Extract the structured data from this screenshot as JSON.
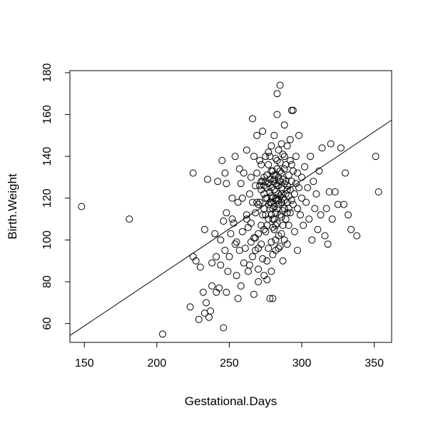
{
  "chart_data": {
    "type": "scatter",
    "title": "",
    "xlabel": "Gestational.Days",
    "ylabel": "Birth.Weight",
    "xlim": [
      140,
      362
    ],
    "ylim": [
      51,
      181
    ],
    "xticks": [
      150,
      200,
      250,
      300,
      350
    ],
    "yticks": [
      60,
      80,
      100,
      120,
      140,
      160,
      180
    ],
    "grid": false,
    "marker": "open-circle",
    "colors": {
      "points": "#000000",
      "line": "#000000",
      "box": "#000000"
    },
    "fit_line": {
      "intercept": -10.75,
      "slope": 0.4643
    },
    "points": [
      [
        148,
        116
      ],
      [
        181,
        110
      ],
      [
        204,
        55
      ],
      [
        223,
        68
      ],
      [
        225,
        92
      ],
      [
        225,
        132
      ],
      [
        227,
        90
      ],
      [
        229,
        62
      ],
      [
        230,
        87
      ],
      [
        232,
        75
      ],
      [
        233,
        105
      ],
      [
        233,
        65
      ],
      [
        234,
        70
      ],
      [
        235,
        129
      ],
      [
        236,
        63
      ],
      [
        237,
        66
      ],
      [
        238,
        89
      ],
      [
        238,
        78
      ],
      [
        240,
        103
      ],
      [
        241,
        75
      ],
      [
        241,
        92
      ],
      [
        242,
        128
      ],
      [
        243,
        77
      ],
      [
        244,
        88
      ],
      [
        244,
        100
      ],
      [
        245,
        138
      ],
      [
        246,
        109
      ],
      [
        246,
        58
      ],
      [
        247,
        132
      ],
      [
        247,
        95
      ],
      [
        248,
        113
      ],
      [
        248,
        75
      ],
      [
        248,
        127
      ],
      [
        249,
        85
      ],
      [
        250,
        92
      ],
      [
        251,
        103
      ],
      [
        252,
        110
      ],
      [
        252,
        120
      ],
      [
        253,
        108
      ],
      [
        254,
        140
      ],
      [
        254,
        98
      ],
      [
        255,
        99
      ],
      [
        255,
        83
      ],
      [
        256,
        72
      ],
      [
        256,
        118
      ],
      [
        257,
        134
      ],
      [
        257,
        95
      ],
      [
        258,
        78
      ],
      [
        258,
        127
      ],
      [
        259,
        120
      ],
      [
        259,
        104
      ],
      [
        260,
        132
      ],
      [
        260,
        89
      ],
      [
        261,
        96
      ],
      [
        262,
        112
      ],
      [
        262,
        143
      ],
      [
        263,
        85
      ],
      [
        263,
        106
      ],
      [
        264,
        88
      ],
      [
        264,
        122
      ],
      [
        265,
        99
      ],
      [
        265,
        130
      ],
      [
        266,
        118
      ],
      [
        266,
        158
      ],
      [
        267,
        101
      ],
      [
        267,
        140
      ],
      [
        267,
        74
      ],
      [
        268,
        95
      ],
      [
        268,
        126
      ],
      [
        268,
        113
      ],
      [
        269,
        150
      ],
      [
        269,
        132
      ],
      [
        270,
        103
      ],
      [
        270,
        86
      ],
      [
        270,
        117
      ],
      [
        271,
        118
      ],
      [
        271,
        138
      ],
      [
        272,
        98
      ],
      [
        272,
        124
      ],
      [
        272,
        107
      ],
      [
        273,
        128
      ],
      [
        273,
        152
      ],
      [
        273,
        91
      ],
      [
        274,
        115
      ],
      [
        274,
        130
      ],
      [
        274,
        83
      ],
      [
        275,
        112
      ],
      [
        275,
        128
      ],
      [
        275,
        140
      ],
      [
        275,
        104
      ],
      [
        276,
        107
      ],
      [
        276,
        131
      ],
      [
        276,
        120
      ],
      [
        276,
        81
      ],
      [
        277,
        110
      ],
      [
        277,
        127
      ],
      [
        277,
        136
      ],
      [
        277,
        96
      ],
      [
        278,
        115
      ],
      [
        278,
        123
      ],
      [
        278,
        140
      ],
      [
        278,
        72
      ],
      [
        279,
        112
      ],
      [
        279,
        118
      ],
      [
        279,
        125
      ],
      [
        279,
        99
      ],
      [
        279,
        145
      ],
      [
        280,
        120
      ],
      [
        280,
        128
      ],
      [
        280,
        110
      ],
      [
        280,
        133
      ],
      [
        280,
        93
      ],
      [
        281,
        116
      ],
      [
        281,
        124
      ],
      [
        281,
        131
      ],
      [
        281,
        105
      ],
      [
        281,
        150
      ],
      [
        282,
        113
      ],
      [
        282,
        120
      ],
      [
        282,
        127
      ],
      [
        282,
        139
      ],
      [
        282,
        100
      ],
      [
        283,
        119
      ],
      [
        283,
        126
      ],
      [
        283,
        134
      ],
      [
        283,
        108
      ],
      [
        283,
        160
      ],
      [
        284,
        117
      ],
      [
        284,
        122
      ],
      [
        284,
        130
      ],
      [
        284,
        143
      ],
      [
        284,
        96
      ],
      [
        285,
        121
      ],
      [
        285,
        128
      ],
      [
        285,
        112
      ],
      [
        285,
        137
      ],
      [
        285,
        174
      ],
      [
        286,
        118
      ],
      [
        286,
        125
      ],
      [
        286,
        132
      ],
      [
        286,
        103
      ],
      [
        287,
        120
      ],
      [
        287,
        129
      ],
      [
        287,
        141
      ],
      [
        287,
        90
      ],
      [
        288,
        115
      ],
      [
        288,
        127
      ],
      [
        288,
        134
      ],
      [
        288,
        155
      ],
      [
        289,
        122
      ],
      [
        289,
        110
      ],
      [
        289,
        136
      ],
      [
        290,
        126
      ],
      [
        290,
        118
      ],
      [
        290,
        145
      ],
      [
        290,
        98
      ],
      [
        291,
        121
      ],
      [
        291,
        131
      ],
      [
        291,
        107
      ],
      [
        292,
        124
      ],
      [
        292,
        138
      ],
      [
        292,
        113
      ],
      [
        293,
        128
      ],
      [
        293,
        119
      ],
      [
        293,
        162
      ],
      [
        294,
        117
      ],
      [
        294,
        133
      ],
      [
        295,
        122
      ],
      [
        295,
        104
      ],
      [
        296,
        127
      ],
      [
        296,
        140
      ],
      [
        297,
        115
      ],
      [
        297,
        95
      ],
      [
        298,
        125
      ],
      [
        298,
        150
      ],
      [
        299,
        112
      ],
      [
        300,
        130
      ],
      [
        300,
        120
      ],
      [
        301,
        107
      ],
      [
        302,
        135
      ],
      [
        303,
        118
      ],
      [
        304,
        125
      ],
      [
        305,
        110
      ],
      [
        306,
        140
      ],
      [
        307,
        100
      ],
      [
        308,
        128
      ],
      [
        309,
        115
      ],
      [
        310,
        122
      ],
      [
        311,
        105
      ],
      [
        312,
        133
      ],
      [
        313,
        112
      ],
      [
        314,
        144
      ],
      [
        316,
        102
      ],
      [
        317,
        115
      ],
      [
        318,
        98
      ],
      [
        319,
        123
      ],
      [
        320,
        146
      ],
      [
        321,
        110
      ],
      [
        323,
        123
      ],
      [
        325,
        117
      ],
      [
        327,
        144
      ],
      [
        329,
        117
      ],
      [
        330,
        132
      ],
      [
        332,
        112
      ],
      [
        334,
        105
      ],
      [
        338,
        102
      ],
      [
        351,
        140
      ],
      [
        353,
        123
      ],
      [
        280,
        72
      ],
      [
        270,
        80
      ],
      [
        283,
        170
      ],
      [
        276,
        90
      ],
      [
        294,
        162
      ],
      [
        262,
        110
      ],
      [
        288,
        100
      ],
      [
        271,
        126
      ],
      [
        265,
        108
      ],
      [
        286,
        146
      ],
      [
        279,
        85
      ],
      [
        297,
        132
      ],
      [
        274,
        105
      ],
      [
        282,
        95
      ],
      [
        269,
        118
      ],
      [
        291,
        115
      ],
      [
        277,
        142
      ],
      [
        284,
        102
      ],
      [
        272,
        136
      ],
      [
        289,
        128
      ],
      [
        266,
        92
      ],
      [
        292,
        148
      ],
      [
        280,
        115
      ],
      [
        287,
        107
      ],
      [
        275,
        120
      ],
      [
        283,
        138
      ],
      [
        278,
        129
      ],
      [
        285,
        97
      ],
      [
        273,
        112
      ],
      [
        290,
        124
      ],
      [
        281,
        110
      ],
      [
        276,
        131
      ],
      [
        288,
        140
      ],
      [
        270,
        96
      ],
      [
        284,
        119
      ],
      [
        279,
        133
      ],
      [
        286,
        122
      ],
      [
        274,
        126
      ],
      [
        282,
        107
      ],
      [
        293,
        136
      ],
      [
        268,
        101
      ],
      [
        287,
        114
      ],
      [
        277,
        117
      ],
      [
        284,
        126
      ],
      [
        279,
        121
      ],
      [
        281,
        129
      ],
      [
        283,
        115
      ],
      [
        276,
        125
      ],
      [
        285,
        133
      ],
      [
        280,
        106
      ],
      [
        278,
        118
      ],
      [
        282,
        131
      ],
      [
        286,
        111
      ],
      [
        274,
        122
      ],
      [
        288,
        119
      ],
      [
        272,
        128
      ],
      [
        290,
        113
      ]
    ]
  }
}
